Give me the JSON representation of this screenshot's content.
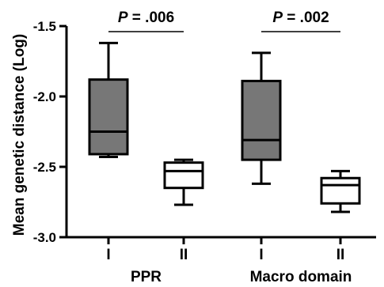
{
  "chart_data": {
    "type": "boxplot",
    "ylabel": "Mean genetic distance (Log)",
    "ylim": [
      -3.0,
      -1.5
    ],
    "yticks": [
      -1.5,
      -2.0,
      -2.5,
      -3.0
    ],
    "ytick_labels": [
      "-1.5",
      "-2.0",
      "-2.5",
      "-3.0"
    ],
    "grid": false,
    "colors": {
      "group_I": "#777777",
      "group_II": "#ffffff",
      "stroke": "#000000"
    },
    "groups": [
      {
        "label": "PPR",
        "annotation": {
          "p_symbol": "P",
          "p_text": " = .006"
        },
        "boxes": [
          {
            "category": "I",
            "fill": "group_I",
            "min": -2.43,
            "q1": -2.41,
            "median": -2.25,
            "q3": -1.88,
            "max": -1.62
          },
          {
            "category": "II",
            "fill": "group_II",
            "min": -2.77,
            "q1": -2.65,
            "median": -2.53,
            "q3": -2.47,
            "max": -2.45
          }
        ]
      },
      {
        "label": "Macro domain",
        "annotation": {
          "p_symbol": "P",
          "p_text": " = .002"
        },
        "boxes": [
          {
            "category": "I",
            "fill": "group_I",
            "min": -2.62,
            "q1": -2.45,
            "median": -2.31,
            "q3": -1.89,
            "max": -1.69
          },
          {
            "category": "II",
            "fill": "group_II",
            "min": -2.82,
            "q1": -2.76,
            "median": -2.63,
            "q3": -2.58,
            "max": -2.53
          }
        ]
      }
    ]
  }
}
